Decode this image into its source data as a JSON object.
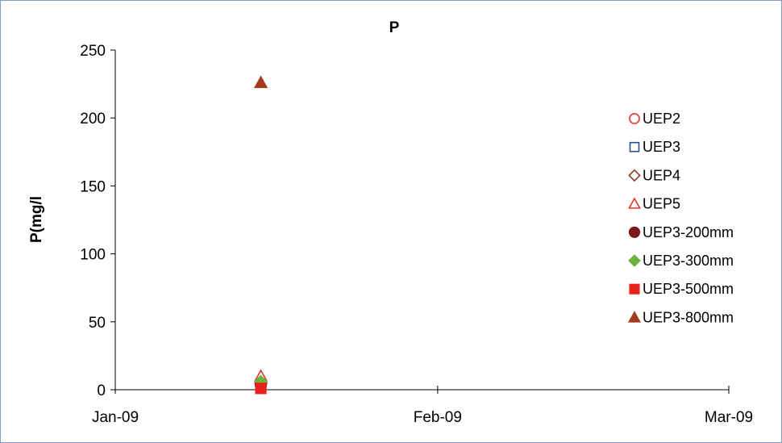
{
  "chart_data": {
    "type": "scatter",
    "title": "P",
    "xlabel": "",
    "ylabel": "P(mg/l",
    "x_axis": {
      "type": "date",
      "range": [
        "2009-01-01",
        "2009-03-01"
      ],
      "ticks": [
        {
          "date": "2009-01-01",
          "label": "Jan-09"
        },
        {
          "date": "2009-02-01",
          "label": "Feb-09"
        },
        {
          "date": "2009-03-01",
          "label": "Mar-09"
        }
      ]
    },
    "y_axis": {
      "ylim": [
        0,
        250
      ],
      "ticks": [
        0,
        50,
        100,
        150,
        200,
        250
      ]
    },
    "grid": false,
    "legend_position": "right",
    "series": [
      {
        "name": "UEP2",
        "marker": "circle-open",
        "color": "#e8312f",
        "points": [
          {
            "x": "2009-01-15",
            "y": 3
          }
        ]
      },
      {
        "name": "UEP3",
        "marker": "square-open",
        "color": "#2f4e8f",
        "points": [
          {
            "x": "2009-01-15",
            "y": 1
          }
        ]
      },
      {
        "name": "UEP4",
        "marker": "diamond-open",
        "color": "#8b3a2a",
        "points": [
          {
            "x": "2009-01-15",
            "y": 5
          }
        ]
      },
      {
        "name": "UEP5",
        "marker": "triangle-open",
        "color": "#e8312f",
        "points": [
          {
            "x": "2009-01-15",
            "y": 10
          }
        ]
      },
      {
        "name": "UEP3-200mm",
        "marker": "circle-filled",
        "color": "#7b1a1a",
        "points": [
          {
            "x": "2009-01-15",
            "y": 4
          }
        ]
      },
      {
        "name": "UEP3-300mm",
        "marker": "diamond-filled",
        "color": "#6db33f",
        "points": [
          {
            "x": "2009-01-15",
            "y": 6
          }
        ]
      },
      {
        "name": "UEP3-500mm",
        "marker": "square-filled",
        "color": "#e8231f",
        "points": [
          {
            "x": "2009-01-15",
            "y": 1
          }
        ]
      },
      {
        "name": "UEP3-800mm",
        "marker": "triangle-filled",
        "color": "#a33a1e",
        "points": [
          {
            "x": "2009-01-15",
            "y": 226
          }
        ]
      }
    ]
  }
}
